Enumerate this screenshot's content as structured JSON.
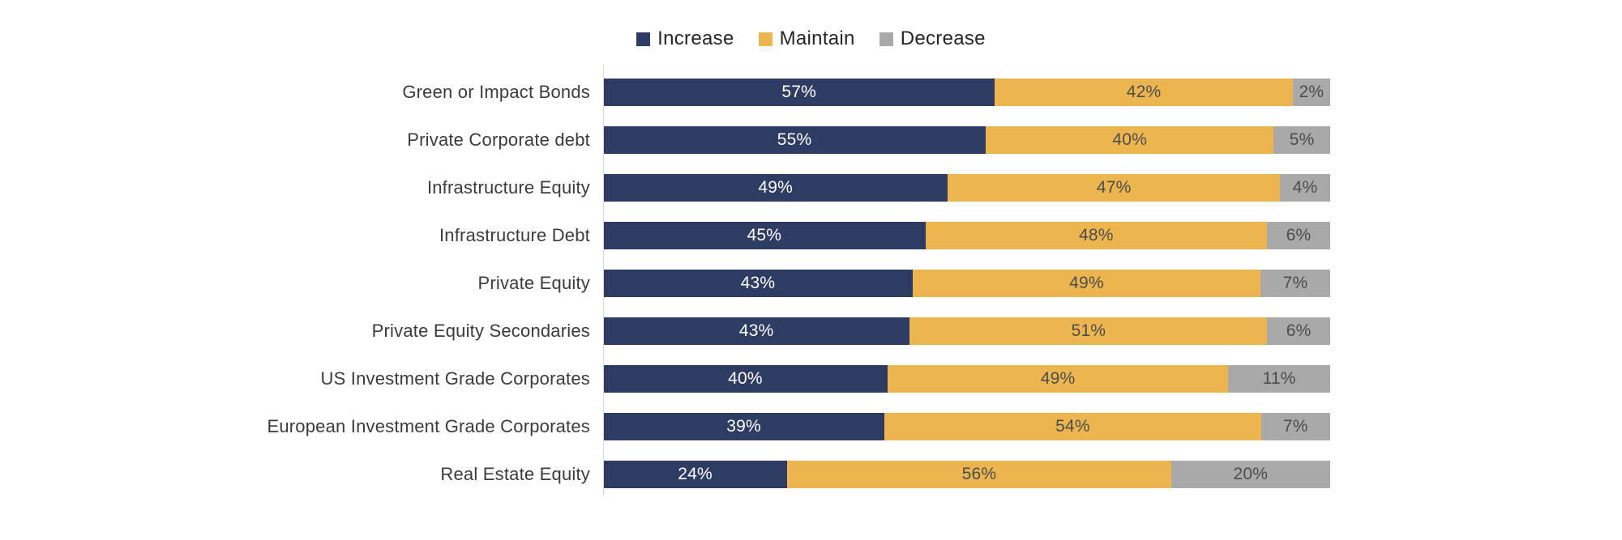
{
  "legend": [
    {
      "label": "Increase",
      "color": "#2e3c64"
    },
    {
      "label": "Maintain",
      "color": "#ecb54f"
    },
    {
      "label": "Decrease",
      "color": "#a9a9a9"
    }
  ],
  "chart_data": {
    "type": "bar",
    "orientation": "horizontal",
    "stacked": true,
    "unit": "%",
    "legend_position": "top",
    "axis_line_color": "#d9d9d9",
    "categories": [
      "Green or Impact Bonds",
      "Private Corporate debt",
      "Infrastructure Equity",
      "Infrastructure Debt",
      "Private Equity",
      "Private Equity Secondaries",
      "US Investment Grade Corporates",
      "European Investment Grade Corporates",
      "Real Estate Equity"
    ],
    "series": [
      {
        "name": "Increase",
        "color": "#2e3c64",
        "label_color": "#ffffff",
        "values": [
          57,
          55,
          49,
          45,
          43,
          43,
          40,
          39,
          24
        ]
      },
      {
        "name": "Maintain",
        "color": "#ecb54f",
        "label_color": "#4c4c4c",
        "values": [
          42,
          40,
          47,
          48,
          49,
          51,
          49,
          54,
          56
        ]
      },
      {
        "name": "Decrease",
        "color": "#a9a9a9",
        "label_color": "#4c4c4c",
        "values": [
          2,
          5,
          4,
          6,
          7,
          6,
          11,
          7,
          20
        ]
      }
    ]
  }
}
